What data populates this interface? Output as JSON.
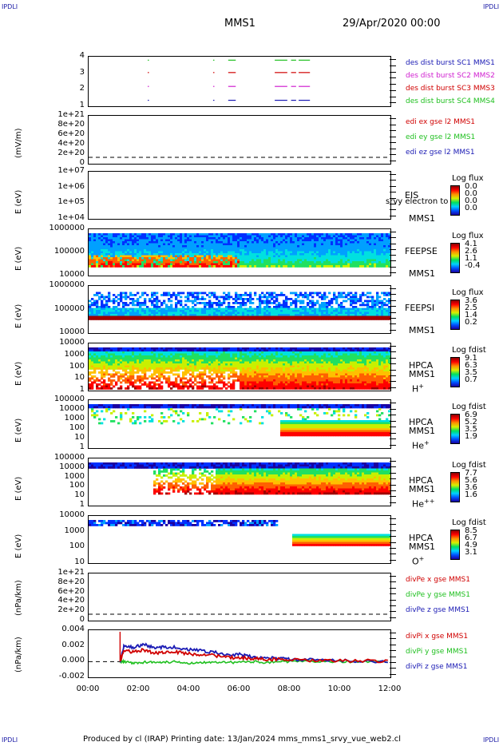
{
  "corners": {
    "tl": "IPDLI",
    "tr": "IPDLI",
    "bl": "IPDLI",
    "br": "IPDLI"
  },
  "header": {
    "title": "MMS1",
    "date": "29/Apr/2020 00:00"
  },
  "footer": "Produced by cl (IRAP)   Printing date: 13/Jan/2024   mms_mms1_srvy_vue_web2.cl",
  "x_ticks": [
    "00:00",
    "02:00",
    "04:00",
    "06:00",
    "08:00",
    "10:00",
    "12:00"
  ],
  "colors": {
    "blue": "#1a1ab4",
    "magenta": "#d020d0",
    "red": "#d00000",
    "green": "#20c020"
  },
  "panels": [
    {
      "id": "burst",
      "ylabel": "",
      "ticks": [
        "4",
        "3",
        "2",
        "1"
      ],
      "labels": [
        {
          "text": "des dist burst SC1 MMS1",
          "color": "#1a1ab4"
        },
        {
          "text": "des dist burst SC2 MMS2",
          "color": "#d020d0"
        },
        {
          "text": "des dist burst SC3 MMS3",
          "color": "#d00000"
        },
        {
          "text": "des dist burst SC4 MMS4",
          "color": "#20c020"
        }
      ]
    },
    {
      "id": "edi",
      "ylabel": "(mV/m)",
      "ticks": [
        "1e+21",
        "8e+20",
        "6e+20",
        "4e+20",
        "2e+20",
        "0"
      ],
      "labels": [
        {
          "text": "edi ex gse l2 MMS1",
          "color": "#d00000"
        },
        {
          "text": "edi ey gse l2 MMS1",
          "color": "#20c020"
        },
        {
          "text": "edi ez gse l2 MMS1",
          "color": "#1a1ab4"
        }
      ]
    },
    {
      "id": "eis",
      "ylabel": "E (eV)",
      "ticks": [
        "1e+07",
        "1e+06",
        "1e+05",
        "1e+04"
      ],
      "inst": "EIS",
      "sub": "MMS1",
      "extra": "srvy electron to",
      "cbar": {
        "title": "Log flux",
        "ticks": [
          "0.0",
          "0.0",
          "0.0",
          "0.0"
        ]
      }
    },
    {
      "id": "feepse",
      "ylabel": "E (eV)",
      "ticks": [
        "1000000",
        "100000",
        "10000"
      ],
      "inst": "FEEPSE",
      "sub": "MMS1",
      "cbar": {
        "title": "Log flux",
        "ticks": [
          "4.1",
          "2.6",
          "1.1",
          "-0.4"
        ]
      }
    },
    {
      "id": "feepsi",
      "ylabel": "E (eV)",
      "ticks": [
        "1000000",
        "100000",
        "10000"
      ],
      "inst": "FEEPSI",
      "sub": "MMS1",
      "cbar": {
        "title": "Log flux",
        "ticks": [
          "3.6",
          "2.5",
          "1.4",
          "0.2"
        ]
      }
    },
    {
      "id": "hpca_h",
      "ylabel": "E (eV)",
      "ticks": [
        "10000",
        "1000",
        "100",
        "10",
        "1"
      ],
      "inst": "HPCA",
      "sub": "MMS1",
      "species": "H",
      "sup": "+",
      "cbar": {
        "title": "Log fdist",
        "ticks": [
          "9.1",
          "6.3",
          "3.5",
          "0.7"
        ]
      }
    },
    {
      "id": "hpca_he",
      "ylabel": "E (eV)",
      "ticks": [
        "100000",
        "10000",
        "1000",
        "100",
        "10",
        "1"
      ],
      "inst": "HPCA",
      "sub": "MMS1",
      "species": "He",
      "sup": "+",
      "cbar": {
        "title": "Log fdist",
        "ticks": [
          "6.9",
          "5.2",
          "3.5",
          "1.9"
        ]
      }
    },
    {
      "id": "hpca_hepp",
      "ylabel": "E (eV)",
      "ticks": [
        "100000",
        "10000",
        "1000",
        "100",
        "10",
        "1"
      ],
      "inst": "HPCA",
      "sub": "MMS1",
      "species": "He",
      "sup": "++",
      "cbar": {
        "title": "Log fdist",
        "ticks": [
          "7.7",
          "5.6",
          "3.6",
          "1.6"
        ]
      }
    },
    {
      "id": "hpca_o",
      "ylabel": "E (eV)",
      "ticks": [
        "10000",
        "1000",
        "100",
        "10"
      ],
      "inst": "HPCA",
      "sub": "MMS1",
      "species": "O",
      "sup": "+",
      "cbar": {
        "title": "Log fdist",
        "ticks": [
          "8.5",
          "6.7",
          "4.9",
          "3.1"
        ]
      }
    },
    {
      "id": "divpe",
      "ylabel": "(nPa/km)",
      "ticks": [
        "1e+21",
        "8e+20",
        "6e+20",
        "4e+20",
        "2e+20",
        "0"
      ],
      "labels": [
        {
          "text": "divPe x gse MMS1",
          "color": "#d00000"
        },
        {
          "text": "divPe y gse MMS1",
          "color": "#20c020"
        },
        {
          "text": "divPe z gse MMS1",
          "color": "#1a1ab4"
        }
      ]
    },
    {
      "id": "divpi",
      "ylabel": "(nPa/km)",
      "ticks": [
        "0.004",
        "0.002",
        "0.000",
        "-0.002"
      ],
      "labels": [
        {
          "text": "divPi x gse MMS1",
          "color": "#d00000"
        },
        {
          "text": "divPi y gse MMS1",
          "color": "#20c020"
        },
        {
          "text": "divPi z gse MMS1",
          "color": "#1a1ab4"
        }
      ]
    }
  ],
  "chart_data": {
    "type": "line",
    "title": "MMS1",
    "x_range": [
      "00:00",
      "12:00"
    ],
    "burst_intervals_hours": [
      [
        2.35,
        2.37
      ],
      [
        4.95,
        5.0
      ],
      [
        5.55,
        5.85
      ],
      [
        7.4,
        7.9
      ],
      [
        8.05,
        8.25
      ],
      [
        8.35,
        8.8
      ]
    ],
    "divPi": {
      "ylim": [
        -0.002,
        0.004
      ],
      "x_hours": [
        1.25,
        1.4,
        1.8,
        2.2,
        2.6,
        3.0,
        3.5,
        4.0,
        4.5,
        5.0,
        5.5,
        6.0,
        6.5,
        7.0,
        7.5,
        8.0,
        9.0,
        10.0,
        11.0,
        12.0
      ],
      "series": [
        {
          "name": "divPi x gse MMS1",
          "values": [
            0.0,
            0.0014,
            0.0012,
            0.0015,
            0.0011,
            0.0012,
            0.0012,
            0.001,
            0.0009,
            0.0008,
            0.0005,
            0.0005,
            0.0004,
            0.0003,
            0.0003,
            0.0002,
            0.0001,
            0.0001,
            0.0001,
            0.0
          ]
        },
        {
          "name": "divPi y gse MMS1",
          "values": [
            0.0,
            0.0,
            -0.0002,
            -0.0001,
            0.0,
            -0.0001,
            0.0,
            -0.0002,
            -0.0001,
            0.0,
            -0.0001,
            -0.0001,
            0.0,
            -0.0001,
            0.0,
            0.0,
            0.0,
            0.0,
            0.0,
            0.0
          ]
        },
        {
          "name": "divPi z gse MMS1",
          "values": [
            0.0,
            0.0019,
            0.0018,
            0.0022,
            0.0017,
            0.0019,
            0.0018,
            0.0015,
            0.0014,
            0.0012,
            0.0008,
            0.0009,
            0.0006,
            0.0005,
            0.0004,
            0.0003,
            0.0002,
            0.0001,
            0.0001,
            0.0
          ]
        }
      ]
    }
  }
}
